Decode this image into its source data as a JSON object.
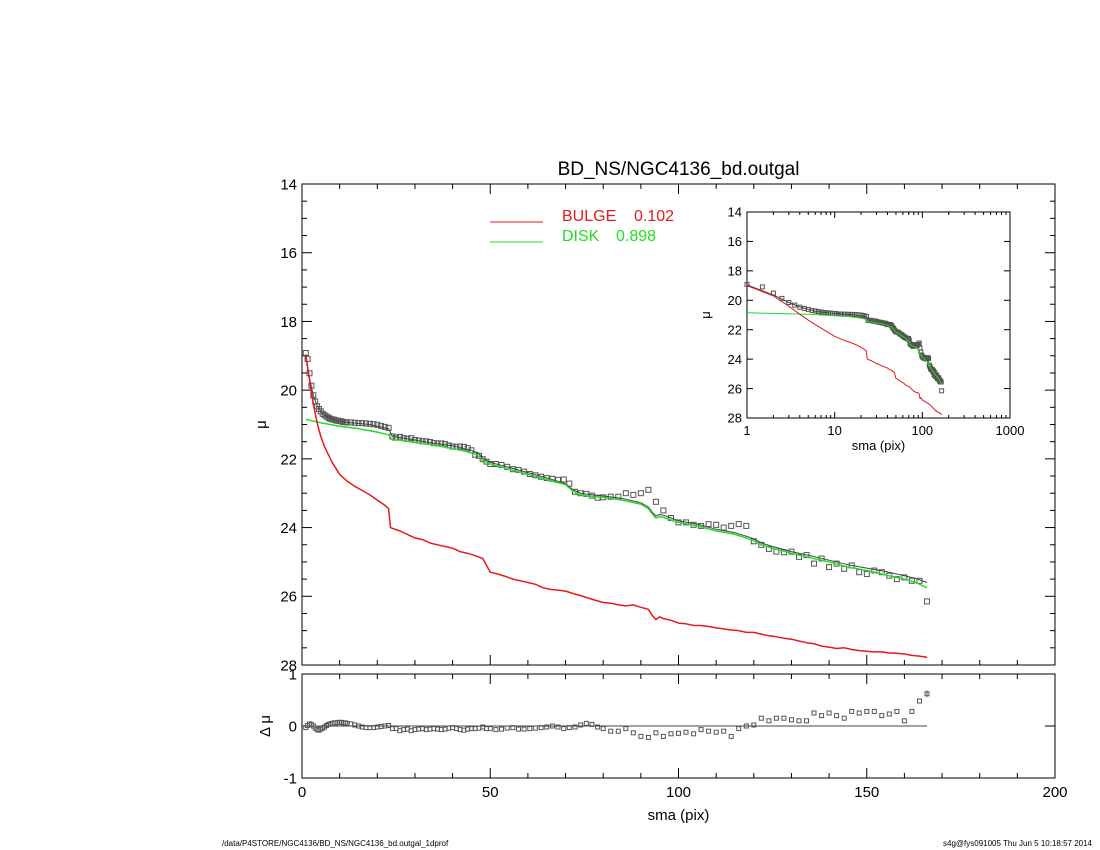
{
  "figure": {
    "footer_left": "/data/P4STORE/NGC4136/BD_NS/NGC4136_bd.outgal_1dprof",
    "footer_right": "s4g@fys091005  Thu Jun  5 10:18:57 2014"
  },
  "colors": {
    "bulge": "#e41a1c",
    "disk": "#22dd22",
    "data": "#555555",
    "axis": "#000000"
  },
  "chart_data": [
    {
      "id": "main",
      "type": "line",
      "title": "BD_NS/NGC4136_bd.outgal",
      "xlabel": "",
      "ylabel": "μ",
      "xlim": [
        0,
        200
      ],
      "ylim": [
        14,
        28
      ],
      "y_inverted": true,
      "xticks": [],
      "yticks": [
        14,
        16,
        18,
        20,
        22,
        24,
        26,
        28
      ],
      "legend_position": "top-center",
      "legend": [
        {
          "name": "BULGE",
          "value": "0.102",
          "color": "#e41a1c"
        },
        {
          "name": "DISK",
          "value": "0.898",
          "color": "#22dd22"
        }
      ],
      "series": [
        {
          "name": "BULGE",
          "style": "line",
          "color": "#e41a1c",
          "x": [
            1,
            2,
            3,
            4,
            5,
            6,
            8,
            10,
            12,
            14,
            16,
            18,
            20,
            22,
            23,
            23.5,
            24,
            26,
            28,
            30,
            32,
            34,
            36,
            38,
            40,
            42,
            44,
            46,
            48,
            50,
            52,
            54,
            56,
            58,
            60,
            62,
            64,
            66,
            68,
            70,
            72,
            74,
            76,
            78,
            80,
            82,
            84,
            86,
            88,
            90,
            92,
            93,
            94,
            95,
            96,
            98,
            100,
            102,
            104,
            106,
            108,
            110,
            112,
            114,
            116,
            118,
            120,
            122,
            124,
            126,
            128,
            130,
            132,
            134,
            136,
            138,
            140,
            142,
            144,
            146,
            148,
            150,
            152,
            154,
            156,
            158,
            160,
            162,
            164,
            166
          ],
          "y": [
            19.0,
            19.7,
            20.4,
            20.95,
            21.35,
            21.65,
            22.1,
            22.45,
            22.65,
            22.8,
            22.92,
            23.05,
            23.2,
            23.35,
            23.45,
            24.0,
            24.02,
            24.1,
            24.2,
            24.3,
            24.35,
            24.45,
            24.5,
            24.55,
            24.6,
            24.7,
            24.75,
            24.82,
            24.9,
            25.3,
            25.35,
            25.42,
            25.5,
            25.55,
            25.6,
            25.65,
            25.75,
            25.8,
            25.82,
            25.85,
            25.92,
            25.98,
            26.05,
            26.12,
            26.18,
            26.2,
            26.25,
            26.28,
            26.25,
            26.32,
            26.38,
            26.55,
            26.68,
            26.6,
            26.65,
            26.7,
            26.78,
            26.8,
            26.85,
            26.85,
            26.88,
            26.92,
            26.95,
            26.98,
            27.0,
            27.05,
            27.05,
            27.1,
            27.15,
            27.18,
            27.22,
            27.25,
            27.3,
            27.35,
            27.38,
            27.45,
            27.48,
            27.52,
            27.5,
            27.55,
            27.58,
            27.6,
            27.62,
            27.62,
            27.65,
            27.66,
            27.68,
            27.72,
            27.74,
            27.78
          ]
        },
        {
          "name": "DISK",
          "style": "line",
          "color": "#22dd22",
          "x": [
            1,
            5,
            10,
            15,
            20,
            23,
            24,
            26,
            30,
            35,
            40,
            45,
            47,
            48,
            50,
            55,
            60,
            65,
            70,
            72,
            74,
            76,
            80,
            85,
            90,
            92,
            93,
            94,
            95,
            96,
            98,
            100,
            105,
            110,
            115,
            118,
            120,
            122,
            125,
            130,
            135,
            140,
            145,
            150,
            155,
            160,
            163,
            166
          ],
          "y": [
            20.85,
            20.95,
            21.05,
            21.12,
            21.22,
            21.3,
            21.45,
            21.45,
            21.52,
            21.6,
            21.7,
            21.82,
            21.92,
            22.05,
            22.15,
            22.3,
            22.45,
            22.6,
            22.75,
            22.95,
            23.05,
            23.08,
            23.12,
            23.2,
            23.32,
            23.45,
            23.6,
            23.72,
            23.68,
            23.7,
            23.78,
            23.85,
            23.95,
            24.1,
            24.2,
            24.3,
            24.38,
            24.5,
            24.6,
            24.75,
            24.88,
            25.0,
            25.15,
            25.25,
            25.38,
            25.5,
            25.6,
            25.75
          ]
        },
        {
          "name": "model",
          "style": "line",
          "color": "#444444",
          "x": [
            1,
            2,
            3,
            4,
            5,
            6,
            8,
            10,
            12,
            14,
            16,
            18,
            20,
            22,
            23,
            24,
            26,
            30,
            35,
            40,
            45,
            47,
            48,
            50,
            55,
            60,
            65,
            70,
            72,
            74,
            76,
            80,
            85,
            90,
            92,
            93,
            94,
            95,
            96,
            98,
            100,
            105,
            110,
            115,
            118,
            120,
            122,
            125,
            130,
            135,
            140,
            145,
            150,
            155,
            160,
            163,
            166
          ],
          "y": [
            18.95,
            19.65,
            20.15,
            20.45,
            20.62,
            20.74,
            20.84,
            20.9,
            20.94,
            20.96,
            20.98,
            21.0,
            21.05,
            21.1,
            21.12,
            21.35,
            21.38,
            21.45,
            21.55,
            21.62,
            21.75,
            21.85,
            21.98,
            22.1,
            22.25,
            22.4,
            22.55,
            22.72,
            22.9,
            23.0,
            23.03,
            23.08,
            23.15,
            23.28,
            23.4,
            23.55,
            23.66,
            23.62,
            23.64,
            23.72,
            23.8,
            23.9,
            24.05,
            24.15,
            24.25,
            24.33,
            24.45,
            24.55,
            24.7,
            24.82,
            24.95,
            25.08,
            25.18,
            25.28,
            25.4,
            25.48,
            25.6
          ]
        },
        {
          "name": "data",
          "style": "markers",
          "color": "#555555",
          "x": [
            1.0,
            1.5,
            2.0,
            2.5,
            3.0,
            3.5,
            4.0,
            4.5,
            5.0,
            5.5,
            6.0,
            6.5,
            7.0,
            7.5,
            8.0,
            8.5,
            9.0,
            9.5,
            10.0,
            10.5,
            11.0,
            11.5,
            12.0,
            13.0,
            14.0,
            15.0,
            16.0,
            17.0,
            18.0,
            19.0,
            20.0,
            21.0,
            22.0,
            23.0,
            24.0,
            25.0,
            26.0,
            27.0,
            28.0,
            29.0,
            30.0,
            31.0,
            32.0,
            33.0,
            34.0,
            35.0,
            36.0,
            37.0,
            38.0,
            39.0,
            40.0,
            41.0,
            42.0,
            43.0,
            44.0,
            45.0,
            46.0,
            47.0,
            48.0,
            49.0,
            50.0,
            51.5,
            53.0,
            54.5,
            56.0,
            57.5,
            59.0,
            60.5,
            62.0,
            63.5,
            65.0,
            66.5,
            68.0,
            69.5,
            71.0,
            72.5,
            74.0,
            75.5,
            77.0,
            78.5,
            80.0,
            82.0,
            84.0,
            86.0,
            88.0,
            90.0,
            92.0,
            94.0,
            96.0,
            98.0,
            100.0,
            102.0,
            104.0,
            106.0,
            108.0,
            110.0,
            112.0,
            114.0,
            116.0,
            118.0,
            120.0,
            122.0,
            124.0,
            126.0,
            128.0,
            130.0,
            132.0,
            134.0,
            136.0,
            138.0,
            140.0,
            142.0,
            144.0,
            146.0,
            148.0,
            150.0,
            152.0,
            154.0,
            156.0,
            158.0,
            160.0,
            162.0,
            164.0,
            166.0
          ],
          "y": [
            18.92,
            19.09,
            19.51,
            19.87,
            20.15,
            20.33,
            20.47,
            20.55,
            20.62,
            20.69,
            20.73,
            20.77,
            20.8,
            20.83,
            20.85,
            20.86,
            20.88,
            20.89,
            20.9,
            20.91,
            20.93,
            20.93,
            20.94,
            20.94,
            20.95,
            20.96,
            20.96,
            20.97,
            20.98,
            20.99,
            21.01,
            21.04,
            21.07,
            21.1,
            21.35,
            21.38,
            21.36,
            21.4,
            21.42,
            21.4,
            21.45,
            21.47,
            21.49,
            21.49,
            21.51,
            21.54,
            21.55,
            21.55,
            21.57,
            21.61,
            21.64,
            21.65,
            21.64,
            21.65,
            21.69,
            21.75,
            21.88,
            21.91,
            22.01,
            22.08,
            22.15,
            22.15,
            22.18,
            22.23,
            22.3,
            22.32,
            22.37,
            22.44,
            22.48,
            22.52,
            22.56,
            22.58,
            22.61,
            22.6,
            22.72,
            22.96,
            23.0,
            23.02,
            23.07,
            23.13,
            23.12,
            23.1,
            23.1,
            23.0,
            23.05,
            23.0,
            22.9,
            23.25,
            23.5,
            23.72,
            23.85,
            23.85,
            23.92,
            23.95,
            23.9,
            23.92,
            24.0,
            23.95,
            23.9,
            23.95,
            24.4,
            24.5,
            24.62,
            24.7,
            24.72,
            24.7,
            24.85,
            24.8,
            25.05,
            24.9,
            25.15,
            25.05,
            25.2,
            25.1,
            25.3,
            25.35,
            25.25,
            25.3,
            25.4,
            25.5,
            25.45,
            25.55,
            25.55,
            26.15
          ]
        }
      ]
    },
    {
      "id": "residual",
      "type": "scatter",
      "title": "",
      "xlabel": "sma (pix)",
      "ylabel": "Δ μ",
      "xlim": [
        0,
        200
      ],
      "ylim": [
        -1,
        1
      ],
      "xticks": [
        0,
        50,
        100,
        150,
        200
      ],
      "yticks": [
        -1,
        0,
        1
      ],
      "reference_line": 0,
      "series": [
        {
          "name": "residual",
          "style": "markers",
          "color": "#555555",
          "x": [
            1.0,
            1.5,
            2.0,
            2.5,
            3.0,
            3.5,
            4.0,
            4.5,
            5.0,
            5.5,
            6.0,
            6.5,
            7.0,
            7.5,
            8.0,
            8.5,
            9.0,
            9.5,
            10.0,
            10.5,
            11.0,
            11.5,
            12.0,
            13.0,
            14.0,
            15.0,
            16.0,
            17.0,
            18.0,
            19.0,
            20.0,
            21.0,
            22.0,
            23.0,
            24.0,
            25.0,
            26.0,
            27.0,
            28.0,
            29.0,
            30.0,
            31.0,
            32.0,
            33.0,
            34.0,
            35.0,
            36.0,
            37.0,
            38.0,
            39.0,
            40.0,
            41.0,
            42.0,
            43.0,
            44.0,
            45.0,
            46.0,
            47.0,
            48.0,
            49.0,
            50.0,
            51.5,
            53.0,
            54.5,
            56.0,
            57.5,
            59.0,
            60.5,
            62.0,
            63.5,
            65.0,
            66.5,
            68.0,
            69.5,
            71.0,
            72.5,
            74.0,
            75.5,
            77.0,
            78.5,
            80.0,
            82.0,
            84.0,
            86.0,
            88.0,
            90.0,
            92.0,
            94.0,
            96.0,
            98.0,
            100.0,
            102.0,
            104.0,
            106.0,
            108.0,
            110.0,
            112.0,
            114.0,
            116.0,
            118.0,
            120.0,
            122.0,
            124.0,
            126.0,
            128.0,
            130.0,
            132.0,
            134.0,
            136.0,
            138.0,
            140.0,
            142.0,
            144.0,
            146.0,
            148.0,
            150.0,
            152.0,
            154.0,
            156.0,
            158.0,
            160.0,
            162.0,
            164.0,
            166.0
          ],
          "y": [
            -0.03,
            0.01,
            0.04,
            0.03,
            0.0,
            -0.04,
            -0.07,
            -0.08,
            -0.06,
            -0.04,
            -0.02,
            0.01,
            0.03,
            0.04,
            0.05,
            0.06,
            0.06,
            0.07,
            0.07,
            0.07,
            0.06,
            0.06,
            0.05,
            0.04,
            0.02,
            0.0,
            -0.02,
            -0.03,
            -0.03,
            -0.03,
            -0.02,
            -0.01,
            0.0,
            0.01,
            -0.05,
            -0.05,
            -0.09,
            -0.07,
            -0.06,
            -0.09,
            -0.07,
            -0.06,
            -0.05,
            -0.07,
            -0.06,
            -0.05,
            -0.06,
            -0.07,
            -0.06,
            -0.04,
            -0.03,
            -0.05,
            -0.07,
            -0.08,
            -0.06,
            -0.05,
            -0.05,
            -0.04,
            -0.02,
            -0.05,
            -0.05,
            -0.07,
            -0.06,
            -0.04,
            -0.03,
            -0.06,
            -0.06,
            -0.05,
            -0.04,
            -0.03,
            -0.02,
            -0.0,
            -0.02,
            -0.05,
            -0.03,
            -0.02,
            0.02,
            0.05,
            0.03,
            -0.02,
            -0.05,
            -0.1,
            -0.1,
            -0.05,
            -0.13,
            -0.2,
            -0.22,
            -0.13,
            -0.2,
            -0.15,
            -0.14,
            -0.12,
            -0.15,
            -0.07,
            -0.1,
            -0.12,
            -0.1,
            -0.2,
            -0.05,
            0.0,
            0.02,
            0.15,
            0.1,
            0.15,
            0.15,
            0.12,
            0.1,
            0.1,
            0.25,
            0.2,
            0.25,
            0.2,
            0.15,
            0.28,
            0.25,
            0.28,
            0.28,
            0.2,
            0.23,
            0.28,
            0.1,
            0.28,
            0.48,
            0.62
          ]
        }
      ]
    },
    {
      "id": "inset",
      "type": "line",
      "title": "",
      "xlabel": "sma (pix)",
      "ylabel": "μ",
      "xscale": "log",
      "xlim": [
        1,
        1000
      ],
      "ylim": [
        14,
        28
      ],
      "y_inverted": true,
      "xticks": [
        1,
        10,
        100,
        1000
      ],
      "yticks": [
        14,
        16,
        18,
        20,
        22,
        24,
        26,
        28
      ],
      "series_from": "main"
    }
  ]
}
